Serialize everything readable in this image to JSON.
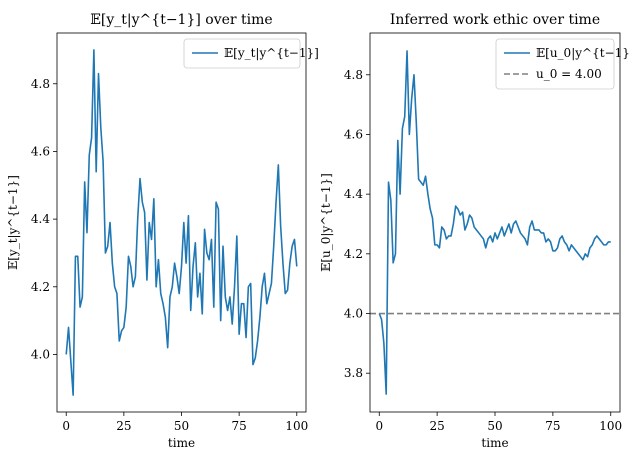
{
  "chart_data": [
    {
      "type": "line",
      "title": "𝔼[y_t|y^{t−1}] over time",
      "xlabel": "time",
      "ylabel": "𝔼[y_t|y^{t−1}]",
      "xlim": [
        -4,
        104
      ],
      "ylim": [
        3.83,
        4.95
      ],
      "x_ticks": [
        0,
        25,
        50,
        75,
        100
      ],
      "y_ticks": [
        4.0,
        4.2,
        4.4,
        4.6,
        4.8
      ],
      "x_tick_labels": [
        "0",
        "25",
        "50",
        "75",
        "100"
      ],
      "y_tick_labels": [
        "4.0",
        "4.2",
        "4.4",
        "4.6",
        "4.8"
      ],
      "grid": false,
      "legend_position": "top-right",
      "series": [
        {
          "name": "𝔼[y_t|y^{t−1}]",
          "color": "#1f77b4",
          "style": "solid",
          "y": [
            4.0,
            4.08,
            3.98,
            3.88,
            4.29,
            4.29,
            4.14,
            4.17,
            4.51,
            4.36,
            4.59,
            4.64,
            4.9,
            4.54,
            4.83,
            4.67,
            4.57,
            4.3,
            4.32,
            4.39,
            4.27,
            4.2,
            4.18,
            4.04,
            4.07,
            4.08,
            4.14,
            4.29,
            4.26,
            4.2,
            4.23,
            4.4,
            4.52,
            4.45,
            4.42,
            4.22,
            4.39,
            4.34,
            4.46,
            4.2,
            4.28,
            4.18,
            4.15,
            4.11,
            4.02,
            4.17,
            4.2,
            4.27,
            4.23,
            4.18,
            4.26,
            4.39,
            4.27,
            4.41,
            4.13,
            4.26,
            4.33,
            4.17,
            4.24,
            4.12,
            4.37,
            4.3,
            4.28,
            4.34,
            4.14,
            4.45,
            4.43,
            4.1,
            4.32,
            4.17,
            4.13,
            4.17,
            4.09,
            4.2,
            4.35,
            4.06,
            4.15,
            4.15,
            4.05,
            4.2,
            4.21,
            3.97,
            3.99,
            4.04,
            4.11,
            4.2,
            4.24,
            4.15,
            4.18,
            4.21,
            4.32,
            4.45,
            4.56,
            4.38,
            4.27,
            4.18,
            4.19,
            4.27,
            4.32,
            4.34,
            4.26
          ]
        }
      ]
    },
    {
      "type": "line",
      "title": "Inferred work ethic over time",
      "xlabel": "time",
      "ylabel": "𝔼[u_0|y^{t−1}]",
      "xlim": [
        -4,
        104
      ],
      "ylim": [
        3.67,
        4.94
      ],
      "x_ticks": [
        0,
        25,
        50,
        75,
        100
      ],
      "y_ticks": [
        3.8,
        4.0,
        4.2,
        4.4,
        4.6,
        4.8
      ],
      "x_tick_labels": [
        "0",
        "25",
        "50",
        "75",
        "100"
      ],
      "y_tick_labels": [
        "3.8",
        "4.0",
        "4.2",
        "4.4",
        "4.6",
        "4.8"
      ],
      "grid": false,
      "legend_position": "top-right",
      "series": [
        {
          "name": "𝔼[u_0|y^{t−1}]",
          "color": "#1f77b4",
          "style": "solid",
          "y": [
            4.0,
            3.98,
            3.9,
            3.73,
            4.44,
            4.38,
            4.17,
            4.2,
            4.58,
            4.4,
            4.62,
            4.66,
            4.88,
            4.6,
            4.72,
            4.8,
            4.64,
            4.45,
            4.44,
            4.43,
            4.46,
            4.4,
            4.35,
            4.32,
            4.23,
            4.23,
            4.22,
            4.29,
            4.28,
            4.25,
            4.26,
            4.26,
            4.3,
            4.36,
            4.35,
            4.33,
            4.34,
            4.28,
            4.3,
            4.33,
            4.32,
            4.29,
            4.28,
            4.27,
            4.26,
            4.25,
            4.22,
            4.25,
            4.26,
            4.24,
            4.27,
            4.25,
            4.27,
            4.29,
            4.26,
            4.28,
            4.3,
            4.27,
            4.3,
            4.31,
            4.29,
            4.27,
            4.26,
            4.25,
            4.23,
            4.29,
            4.31,
            4.28,
            4.28,
            4.28,
            4.27,
            4.27,
            4.24,
            4.25,
            4.24,
            4.21,
            4.21,
            4.22,
            4.25,
            4.26,
            4.24,
            4.23,
            4.21,
            4.23,
            4.22,
            4.21,
            4.2,
            4.19,
            4.18,
            4.2,
            4.19,
            4.22,
            4.23,
            4.25,
            4.26,
            4.25,
            4.24,
            4.23,
            4.23,
            4.24,
            4.24
          ]
        },
        {
          "name": "u_0 = 4.00",
          "color": "#808080",
          "style": "dashed",
          "constant": 4.0
        }
      ]
    }
  ]
}
